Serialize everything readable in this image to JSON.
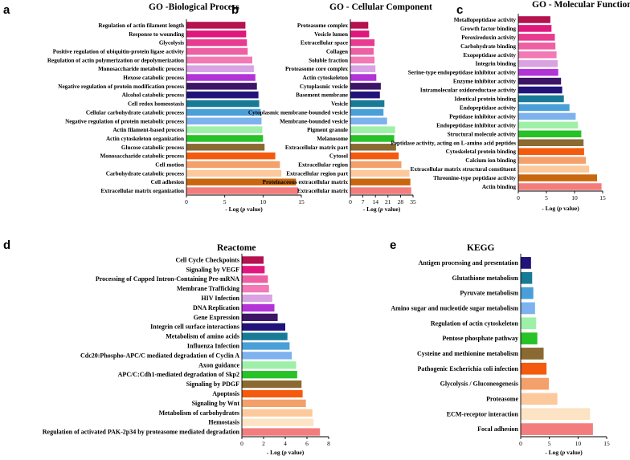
{
  "chart_data": [
    {
      "panel_letter": "a",
      "type": "bar",
      "orientation": "horizontal",
      "title": "GO -Biological Process",
      "xlabel_prefix": "- Log (",
      "xlabel_italic": "p",
      "xlabel_suffix": " value)",
      "xlim": [
        0,
        15
      ],
      "xticks": [
        "0",
        "5",
        "10",
        "15"
      ],
      "categories": [
        "Regulation of actin filament length",
        "Response to wounding",
        "Glycolysis",
        "Positive regulation of ubiquitin-protein ligase activity",
        "Regulation of actin polymerization or depolymerization",
        "Monosaccharide metabolic process",
        "Hexose catabolic process",
        "Negative regulation of protein modification process",
        "Alcohol catabolic process",
        "Cell redox homeostasis",
        "Cellular carbohydrate catabolic process",
        "Negative regulation of protein metabolic process",
        "Actin filament-based process",
        "Actin cytoskeleton organization",
        "Glucose catabolic process",
        "Monosaccharide catabolic process",
        "Cell motion",
        "Carbohydrate catabolic process",
        "Cell adhesion",
        "Extracellular matrix organization"
      ],
      "values": [
        7.7,
        7.8,
        7.9,
        8.0,
        8.6,
        8.8,
        9.0,
        9.2,
        9.4,
        9.5,
        9.7,
        9.8,
        9.9,
        10.0,
        10.2,
        11.6,
        12.2,
        12.4,
        14.3,
        14.6
      ],
      "colors": [
        "#b5124f",
        "#e0187d",
        "#e83a8f",
        "#ef5fa3",
        "#f279b5",
        "#d8a2e3",
        "#b233d8",
        "#3d1566",
        "#22137a",
        "#187a96",
        "#4a9fd8",
        "#7db2ee",
        "#9ef0a8",
        "#27c227",
        "#8a6a32",
        "#f45a0e",
        "#f3a06a",
        "#fbc99c",
        "#c9670e",
        "#f37d7d"
      ]
    },
    {
      "panel_letter": "b",
      "type": "bar",
      "orientation": "horizontal",
      "title": "GO - Cellular Component",
      "xlabel_prefix": "- Log (",
      "xlabel_italic": "p",
      "xlabel_suffix": " value)",
      "xlim": [
        0,
        35
      ],
      "xticks": [
        "0",
        "7",
        "14",
        "21",
        "28",
        "35"
      ],
      "categories": [
        "Proteasome complex",
        "Vesicle lumen",
        "Extracellular space",
        "Collagen",
        "Soluble fraction",
        "Proteasome core complex",
        "Actin cytoskeleton",
        "Cytoplasmic vesicle",
        "Basement membrane",
        "Vesicle",
        "Cytoplasmic membrane-bounded vesicle",
        "Membrane-bounded vesicle",
        "Pigment granule",
        "Melanosome",
        "Extracellular matrix part",
        "Cytosol",
        "Extracellular region",
        "Extracellular region part",
        "Proteinaceous extracellular matrix",
        "Extracellular matrix"
      ],
      "values": [
        10.0,
        10.5,
        13.5,
        13.0,
        13.5,
        14.0,
        14.5,
        17.0,
        16.5,
        19.0,
        18.5,
        20.5,
        25.0,
        24.5,
        25.5,
        27.0,
        28.5,
        33.0,
        33.5,
        34.0
      ],
      "colors": [
        "#b5124f",
        "#e0187d",
        "#e83a8f",
        "#ef5fa3",
        "#f279b5",
        "#d8a2e3",
        "#b233d8",
        "#3d1566",
        "#22137a",
        "#187a96",
        "#4a9fd8",
        "#7db2ee",
        "#9ef0a8",
        "#27c227",
        "#8a6a32",
        "#f45a0e",
        "#f3a06a",
        "#fbc99c",
        "#c9670e",
        "#f37d7d"
      ]
    },
    {
      "panel_letter": "c",
      "type": "bar",
      "orientation": "horizontal",
      "title": "GO - Molecular Function",
      "xlabel_prefix": "- Log (",
      "xlabel_italic": "p",
      "xlabel_suffix": " value)",
      "xlim": [
        0,
        15
      ],
      "xticks": [
        "0",
        "5",
        "10",
        "15"
      ],
      "categories": [
        "Metallopeptidase activity",
        "Growth factor binding",
        "Peroxiredoxin activity",
        "Carbohydrate binding",
        "Exopeptidase activity",
        "Integrin binding",
        "Serine-type endopeptidase inhibitor activity",
        "Enzyme inhibitor activity",
        "Intramolecular oxidoreductase activity",
        "Identical protein binding",
        "Endopeptidase activity",
        "Peptidase inhibitor activity",
        "Endopeptidase inhibitor activity",
        "Structural molecule activity",
        "Peptidase activity, acting on L-amino acid peptides",
        "Cytoskeletal protein binding",
        "Calcium ion binding",
        "Extracellular matrix structural constituent",
        "Threonine-type peptidase activity",
        "Actin binding"
      ],
      "values": [
        5.7,
        5.9,
        6.5,
        6.6,
        6.8,
        7.0,
        7.1,
        7.6,
        7.8,
        8.1,
        9.1,
        10.2,
        10.6,
        11.2,
        11.6,
        11.7,
        12.0,
        12.6,
        14.0,
        14.8
      ],
      "colors": [
        "#b5124f",
        "#e0187d",
        "#e83a8f",
        "#ef5fa3",
        "#f279b5",
        "#d8a2e3",
        "#b233d8",
        "#3d1566",
        "#22137a",
        "#187a96",
        "#4a9fd8",
        "#7db2ee",
        "#9ef0a8",
        "#27c227",
        "#8a6a32",
        "#f45a0e",
        "#f3a06a",
        "#fbc99c",
        "#c9670e",
        "#f37d7d"
      ]
    },
    {
      "panel_letter": "d",
      "type": "bar",
      "orientation": "horizontal",
      "title": "Reactome",
      "xlabel_prefix": "- Log (",
      "xlabel_italic": "p",
      "xlabel_suffix": " value)",
      "xlim": [
        0,
        8
      ],
      "xticks": [
        "0",
        "2",
        "4",
        "6",
        "8"
      ],
      "categories": [
        "Cell Cycle Checkpoints",
        "Signaling by VEGF",
        "Processing of Capped Intron-Containing Pre-mRNA",
        "Membrane Trafficking",
        "HIV Infection",
        "DNA Replication",
        "Gene Expression",
        "Integrin cell surface interactions",
        "Metabolism of amino acids",
        "Influenza Infection",
        "Cdc20:Phospho-APC/C mediated degradation of Cyclin A",
        "Axon guidance",
        "APC/C:Cdh1-mediated degradation of Skp2",
        "Signaling by PDGF",
        "Apoptosis",
        "Signaling by Wnt",
        "Metabolism of carbohydrates",
        "Hemostasis",
        "Regulation of activated PAK-2p34 by proteasome mediated degradation"
      ],
      "values": [
        2.0,
        2.1,
        2.4,
        2.5,
        2.8,
        3.0,
        3.3,
        4.0,
        4.2,
        4.4,
        4.6,
        5.0,
        5.1,
        5.5,
        5.6,
        5.9,
        6.5,
        6.6,
        7.2
      ],
      "colors": [
        "#b5124f",
        "#e0187d",
        "#ef5fa3",
        "#f279b5",
        "#d8a2e3",
        "#b233d8",
        "#3d1566",
        "#22137a",
        "#187a96",
        "#4a9fd8",
        "#7db2ee",
        "#9ef0a8",
        "#27c227",
        "#8a6a32",
        "#f45a0e",
        "#f3a06a",
        "#fbc99c",
        "#fce3c4",
        "#f37d7d"
      ]
    },
    {
      "panel_letter": "e",
      "type": "bar",
      "orientation": "horizontal",
      "title": "KEGG",
      "xlabel_prefix": "- Log (",
      "xlabel_italic": "p",
      "xlabel_suffix": " value)",
      "xlim": [
        0,
        15
      ],
      "xticks": [
        "0",
        "5",
        "10",
        "15"
      ],
      "categories": [
        "Antigen processing and presentation",
        "Glutathione metabolism",
        "Pyruvate metabolism",
        "Amino sugar and nucleotide sugar metabolism",
        "Regulation of actin cytoskeleton",
        "Pentose phosphate pathway",
        "Cysteine and methionine metabolism",
        "Pathogenic Escherichia coli infection",
        "Glycolysis / Gluconeogenesis",
        "Proteasome",
        "ECM-receptor interaction",
        "Focal adhesion"
      ],
      "values": [
        1.8,
        2.0,
        2.2,
        2.5,
        2.7,
        2.9,
        4.0,
        4.5,
        4.9,
        6.4,
        12.1,
        12.6
      ],
      "colors": [
        "#22137a",
        "#187a96",
        "#4a9fd8",
        "#7db2ee",
        "#9ef0a8",
        "#27c227",
        "#8a6a32",
        "#f45a0e",
        "#f3a06a",
        "#fbc99c",
        "#fce3c4",
        "#f37d7d"
      ]
    }
  ]
}
